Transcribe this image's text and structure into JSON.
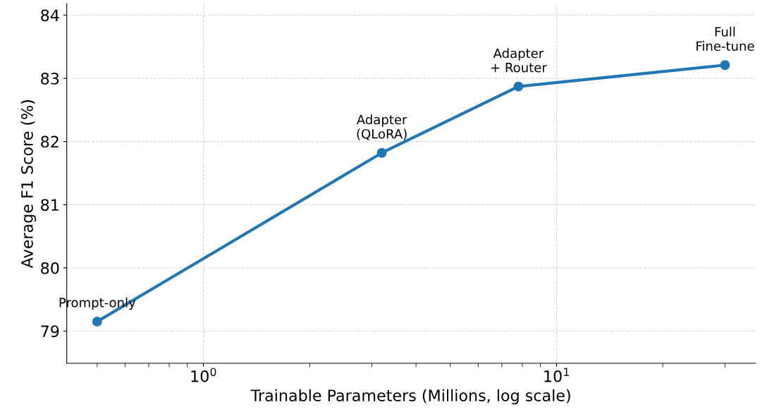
{
  "chart_data": {
    "type": "line",
    "xlabel": "Trainable Parameters (Millions, log scale)",
    "ylabel": "Average F1 Score (%)",
    "x": [
      0.5,
      3.2,
      7.8,
      30
    ],
    "series": [
      {
        "color": "#1f77b4",
        "values": [
          79.15,
          81.82,
          82.87,
          83.21
        ]
      }
    ],
    "annotations": [
      {
        "text": "Prompt-only",
        "x": 0.5,
        "y": 79.15
      },
      {
        "text": "Adapter\n(QLoRA)",
        "x": 3.2,
        "y": 81.82
      },
      {
        "text": "Adapter\n+ Router",
        "x": 7.8,
        "y": 82.87
      },
      {
        "text": "Full\nFine-tune",
        "x": 30,
        "y": 83.21
      }
    ],
    "log": "x",
    "xlim": [
      0.41,
      36.6
    ],
    "ylim": [
      78.49,
      84.18
    ],
    "xticks": [
      {
        "value": 1,
        "label": "10$^{0}$"
      },
      {
        "value": 10,
        "label": "10$^{1}$"
      }
    ],
    "yticks": [
      79,
      80,
      81,
      82,
      83,
      84
    ],
    "grid": true,
    "marker": "circle",
    "line_style": "solid"
  }
}
